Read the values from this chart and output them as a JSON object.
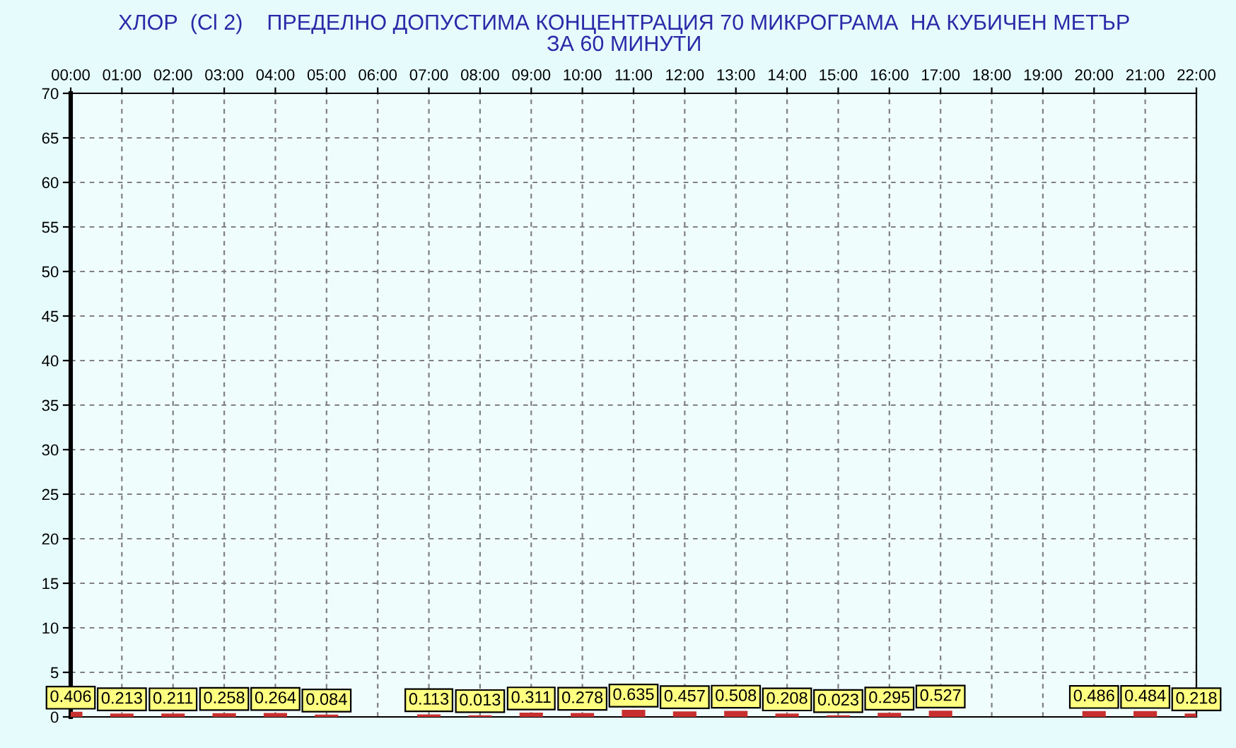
{
  "chart_data": {
    "type": "bar",
    "title": "ХЛОР  (Cl 2)    ПРЕДЕЛНО ДОПУСТИМА КОНЦЕНТРАЦИЯ 70 МИКРОГРАМА  НА КУБИЧЕН МЕТЪР",
    "subtitle": "ЗА 60 МИНУТИ",
    "x": [
      0,
      1,
      2,
      3,
      4,
      5,
      6,
      7,
      8,
      9,
      10,
      11,
      12,
      13,
      14,
      15,
      16,
      17,
      18,
      19,
      20,
      21,
      22
    ],
    "values": [
      0.406,
      0.213,
      0.211,
      0.258,
      0.264,
      0.084,
      null,
      0.113,
      0.013,
      0.311,
      0.278,
      0.635,
      0.457,
      0.508,
      0.208,
      0.023,
      0.295,
      0.527,
      null,
      null,
      0.486,
      0.484,
      0.218
    ],
    "color": "#c83030",
    "data_labels": true,
    "xlim": [
      0,
      22
    ],
    "xticks": [
      {
        "value": 0,
        "label": "00:00"
      },
      {
        "value": 1,
        "label": "01:00"
      },
      {
        "value": 2,
        "label": "02:00"
      },
      {
        "value": 3,
        "label": "03:00"
      },
      {
        "value": 4,
        "label": "04:00"
      },
      {
        "value": 5,
        "label": "05:00"
      },
      {
        "value": 6,
        "label": "06:00"
      },
      {
        "value": 7,
        "label": "07:00"
      },
      {
        "value": 8,
        "label": "08:00"
      },
      {
        "value": 9,
        "label": "09:00"
      },
      {
        "value": 10,
        "label": "10:00"
      },
      {
        "value": 11,
        "label": "11:00"
      },
      {
        "value": 12,
        "label": "12:00"
      },
      {
        "value": 13,
        "label": "13:00"
      },
      {
        "value": 14,
        "label": "14:00"
      },
      {
        "value": 15,
        "label": "15:00"
      },
      {
        "value": 16,
        "label": "16:00"
      },
      {
        "value": 17,
        "label": "17:00"
      },
      {
        "value": 18,
        "label": "18:00"
      },
      {
        "value": 19,
        "label": "19:00"
      },
      {
        "value": 20,
        "label": "20:00"
      },
      {
        "value": 21,
        "label": "21:00"
      },
      {
        "value": 22,
        "label": "22:00"
      }
    ],
    "ylim": [
      0,
      70
    ],
    "yticks": [
      0,
      5,
      10,
      15,
      20,
      25,
      30,
      35,
      40,
      45,
      50,
      55,
      60,
      65,
      70
    ],
    "grid": true
  }
}
